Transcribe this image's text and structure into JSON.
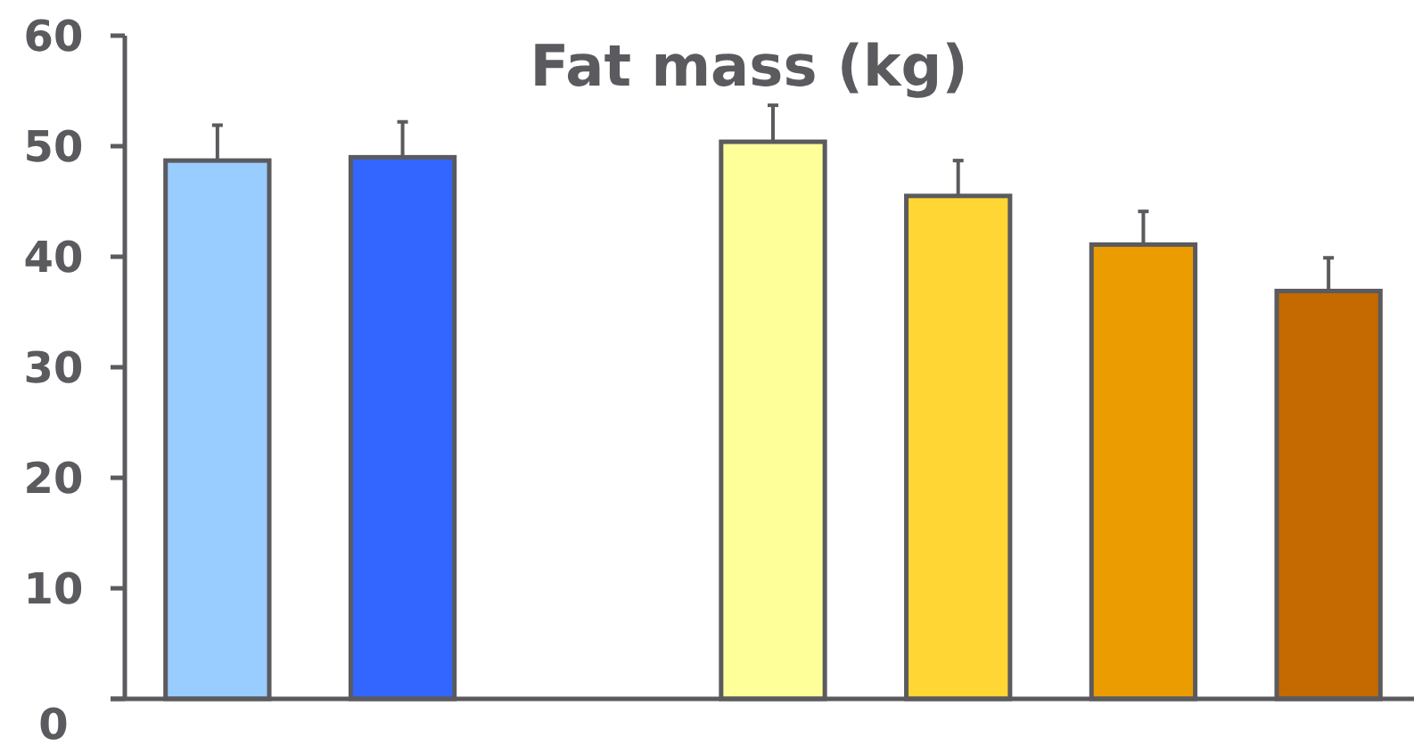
{
  "chart_data": {
    "type": "bar",
    "title": "Fat mass (kg)",
    "categories": [
      null,
      null,
      null,
      null,
      null,
      null,
      null
    ],
    "values": [
      48.7,
      49.0,
      null,
      50.4,
      45.5,
      41.1,
      36.9
    ],
    "colors": [
      "#99ccff",
      "#3366ff",
      null,
      "#ffff99",
      "#ffd633",
      "#eb9c00",
      "#c46a00"
    ],
    "errors": [
      [
        48.7,
        51.9
      ],
      [
        49.0,
        52.2
      ],
      null,
      [
        50.4,
        53.7
      ],
      [
        45.5,
        48.7
      ],
      [
        41.1,
        44.1
      ],
      [
        36.9,
        39.9
      ]
    ],
    "ylim": [
      0,
      60
    ],
    "yticks": [
      0,
      10,
      20,
      30,
      40,
      50,
      60
    ],
    "grid": false
  }
}
